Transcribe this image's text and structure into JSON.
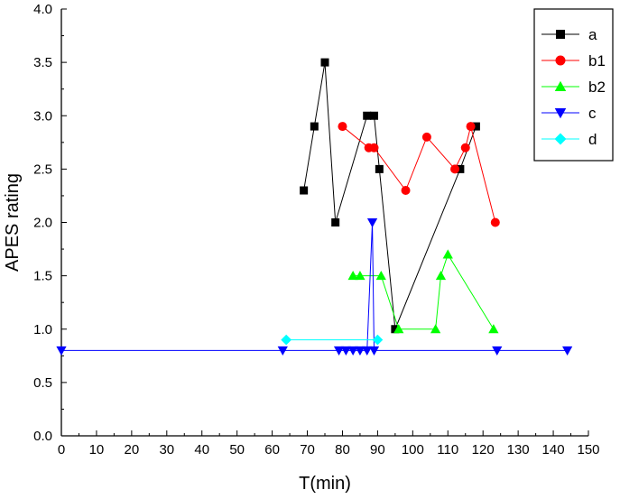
{
  "chart_data": {
    "type": "line",
    "title": "",
    "xlabel": "T(min)",
    "ylabel": "APES rating",
    "xlim": [
      0,
      150
    ],
    "ylim": [
      0.0,
      4.0
    ],
    "xticks": [
      0,
      10,
      20,
      30,
      40,
      50,
      60,
      70,
      80,
      90,
      100,
      110,
      120,
      130,
      140,
      150
    ],
    "yticks": [
      "0.0",
      "0.5",
      "1.0",
      "1.5",
      "2.0",
      "2.5",
      "3.0",
      "3.5",
      "4.0"
    ],
    "grid": false,
    "legend_position": "top-right",
    "series": [
      {
        "name": "a",
        "color": "#000000",
        "marker": "square",
        "x": [
          69,
          72,
          75,
          78,
          87,
          89,
          90.5,
          95,
          113.5,
          118
        ],
        "y": [
          2.3,
          2.9,
          3.5,
          2.0,
          3.0,
          3.0,
          2.5,
          1.0,
          2.5,
          2.9
        ]
      },
      {
        "name": "b1",
        "color": "#ff0000",
        "marker": "circle",
        "x": [
          80,
          87.5,
          89,
          98,
          104,
          112,
          115,
          116.5,
          123.5
        ],
        "y": [
          2.9,
          2.7,
          2.7,
          2.3,
          2.8,
          2.5,
          2.7,
          2.9,
          2.0
        ]
      },
      {
        "name": "b2",
        "color": "#00ff00",
        "marker": "triangle-up",
        "x": [
          83,
          85,
          91,
          96,
          106.5,
          108,
          110,
          123
        ],
        "y": [
          1.5,
          1.5,
          1.5,
          1.0,
          1.0,
          1.5,
          1.7,
          1.0
        ]
      },
      {
        "name": "c",
        "color": "#0000ff",
        "marker": "triangle-down",
        "x": [
          0,
          63,
          79,
          81,
          83,
          85,
          87,
          88.5,
          89,
          124,
          144
        ],
        "y": [
          0.8,
          0.8,
          0.8,
          0.8,
          0.8,
          0.8,
          0.8,
          2.0,
          0.8,
          0.8,
          0.8
        ]
      },
      {
        "name": "d",
        "color": "#00ffff",
        "marker": "diamond",
        "x": [
          64,
          90
        ],
        "y": [
          0.9,
          0.9
        ]
      }
    ]
  }
}
